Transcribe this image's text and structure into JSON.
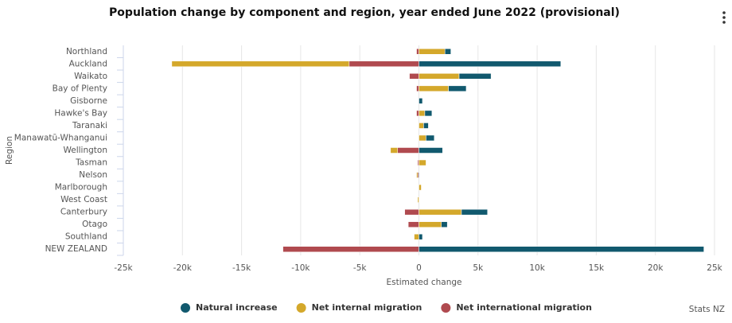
{
  "chart_data": {
    "type": "stacked_barh",
    "title": "Population change by component and region, year ended June 2022 (provisional)",
    "xlabel": "Estimated change",
    "ylabel": "Region",
    "credit": "Stats NZ",
    "categories": [
      "Northland",
      "Auckland",
      "Waikato",
      "Bay of Plenty",
      "Gisborne",
      "Hawke's Bay",
      "Taranaki",
      "Manawatū-Whanganui",
      "Wellington",
      "Tasman",
      "Nelson",
      "Marlborough",
      "West Coast",
      "Canterbury",
      "Otago",
      "Southland",
      "NEW ZEALAND"
    ],
    "series": [
      {
        "name": "Natural increase",
        "color": "#11596e",
        "values": [
          500,
          12000,
          2700,
          1500,
          300,
          600,
          400,
          700,
          2000,
          0,
          50,
          0,
          0,
          2200,
          500,
          300,
          24100
        ]
      },
      {
        "name": "Net internal migration",
        "color": "#d4a82b",
        "values": [
          2200,
          -15000,
          3400,
          2500,
          0,
          500,
          400,
          600,
          -600,
          600,
          -100,
          200,
          -100,
          3600,
          1900,
          -400,
          0
        ]
      },
      {
        "name": "Net international migration",
        "color": "#b04a4f",
        "values": [
          -200,
          -5900,
          -800,
          -200,
          0,
          -200,
          0,
          0,
          -1800,
          -100,
          -100,
          0,
          0,
          -1200,
          -900,
          0,
          -11500
        ]
      }
    ],
    "xlim": [
      -25000,
      25000
    ],
    "xticks": [
      {
        "value": -25000,
        "label": "-25k"
      },
      {
        "value": -20000,
        "label": "-20k"
      },
      {
        "value": -15000,
        "label": "-15k"
      },
      {
        "value": -10000,
        "label": "-10k"
      },
      {
        "value": -5000,
        "label": "-5k"
      },
      0,
      {
        "value": 5000,
        "label": "5k"
      },
      {
        "value": 10000,
        "label": "10k"
      },
      {
        "value": 15000,
        "label": "15k"
      },
      {
        "value": 20000,
        "label": "20k"
      },
      {
        "value": 25000,
        "label": "25k"
      }
    ],
    "grid": true
  }
}
